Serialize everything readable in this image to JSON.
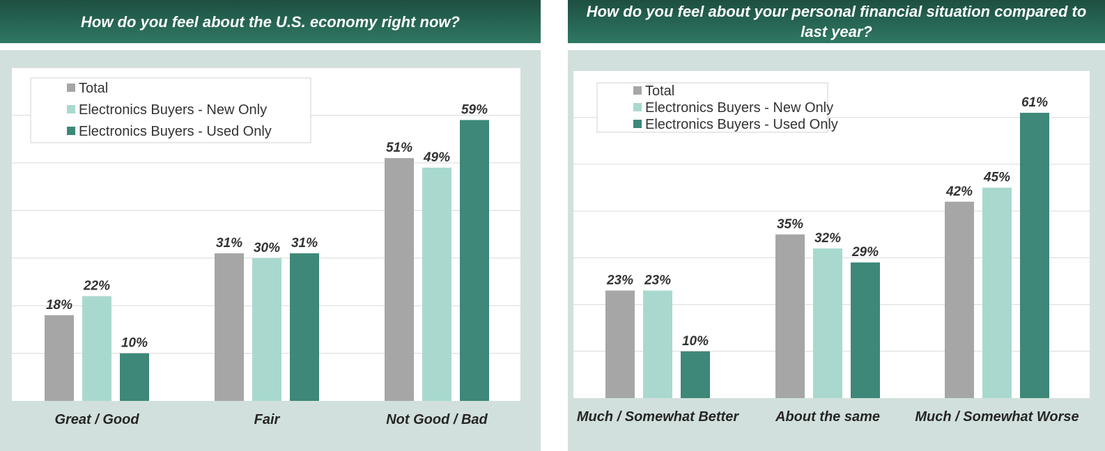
{
  "chart_data": [
    {
      "type": "bar",
      "title": "How do you feel about the U.S. economy right now?",
      "categories": [
        "Great / Good",
        "Fair",
        "Not Good / Bad"
      ],
      "series": [
        {
          "name": "Total",
          "values": [
            18,
            31,
            51
          ],
          "labels": [
            "18%",
            "31%",
            "51%"
          ],
          "color": "#a6a6a6"
        },
        {
          "name": "Electronics Buyers - New Only",
          "values": [
            22,
            30,
            49
          ],
          "labels": [
            "22%",
            "30%",
            "49%"
          ],
          "color": "#a9d9ce"
        },
        {
          "name": "Electronics Buyers - Used Only",
          "values": [
            10,
            31,
            59
          ],
          "labels": [
            "10%",
            "31%",
            "59%"
          ],
          "color": "#3d8878"
        }
      ],
      "ylim": [
        0,
        70
      ],
      "grid": true,
      "legend": "top-left"
    },
    {
      "type": "bar",
      "title": "How do you feel about your personal financial situation compared to last year?",
      "categories": [
        "Much / Somewhat Better",
        "About the same",
        "Much / Somewhat Worse"
      ],
      "series": [
        {
          "name": "Total",
          "values": [
            23,
            35,
            42
          ],
          "labels": [
            "23%",
            "35%",
            "42%"
          ],
          "color": "#a6a6a6"
        },
        {
          "name": "Electronics Buyers - New Only",
          "values": [
            23,
            32,
            45
          ],
          "labels": [
            "23%",
            "32%",
            "45%"
          ],
          "color": "#a9d9ce"
        },
        {
          "name": "Electronics Buyers - Used Only",
          "values": [
            10,
            29,
            61
          ],
          "labels": [
            "10%",
            "29%",
            "61%"
          ],
          "color": "#3d8878"
        }
      ],
      "ylim": [
        0,
        70
      ],
      "grid": true,
      "legend": "top-left"
    }
  ],
  "colors": {
    "header": "#1d4f41",
    "frame": "#d1e0dc",
    "grid": "#d9d9d9"
  }
}
